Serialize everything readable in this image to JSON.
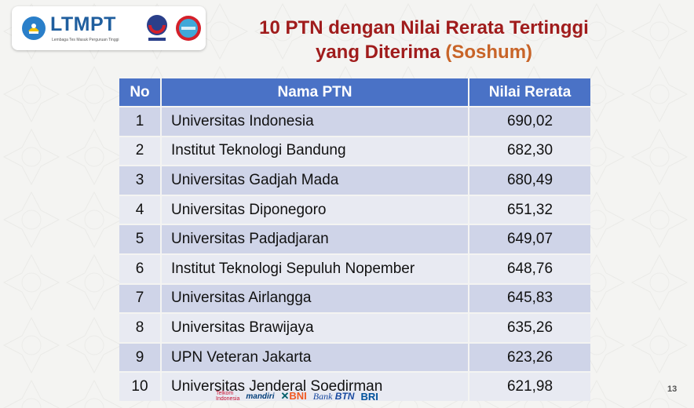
{
  "logo": {
    "name": "LTMPT",
    "tagline": "Lembaga Tes Masuk Perguruan Tinggi",
    "snmptn": "SNMPTN",
    "sbmptn": "SBMPTN"
  },
  "title": {
    "line1": "10 PTN dengan Nilai Rerata Tertinggi",
    "line2_main": "yang Diterima ",
    "line2_accent": "(Soshum)"
  },
  "table": {
    "headers": [
      "No",
      "Nama PTN",
      "Nilai Rerata"
    ],
    "rows": [
      [
        "1",
        "Universitas Indonesia",
        "690,02"
      ],
      [
        "2",
        "Institut Teknologi Bandung",
        "682,30"
      ],
      [
        "3",
        "Universitas Gadjah Mada",
        "680,49"
      ],
      [
        "4",
        "Universitas Diponegoro",
        "651,32"
      ],
      [
        "5",
        "Universitas Padjadjaran",
        "649,07"
      ],
      [
        "6",
        "Institut Teknologi Sepuluh Nopember",
        "648,76"
      ],
      [
        "7",
        "Universitas Airlangga",
        "645,83"
      ],
      [
        "8",
        "Universitas Brawijaya",
        "635,26"
      ],
      [
        "9",
        "UPN Veteran Jakarta",
        "623,26"
      ],
      [
        "10",
        "Universitas Jenderal Soedirman",
        "621,98"
      ]
    ]
  },
  "sponsors": {
    "telkom1": "Telkom",
    "telkom2": "Indonesia",
    "mandiri": "mandiri",
    "bni": "BNI",
    "btn_bank": "Bank",
    "btn": "BTN",
    "bri": "BRI"
  },
  "page_number": "13",
  "colors": {
    "header_bg": "#4a72c6",
    "row_odd": "#cfd4e8",
    "row_even": "#e8eaf2",
    "title": "#a01c1c",
    "title_accent": "#c86428"
  }
}
